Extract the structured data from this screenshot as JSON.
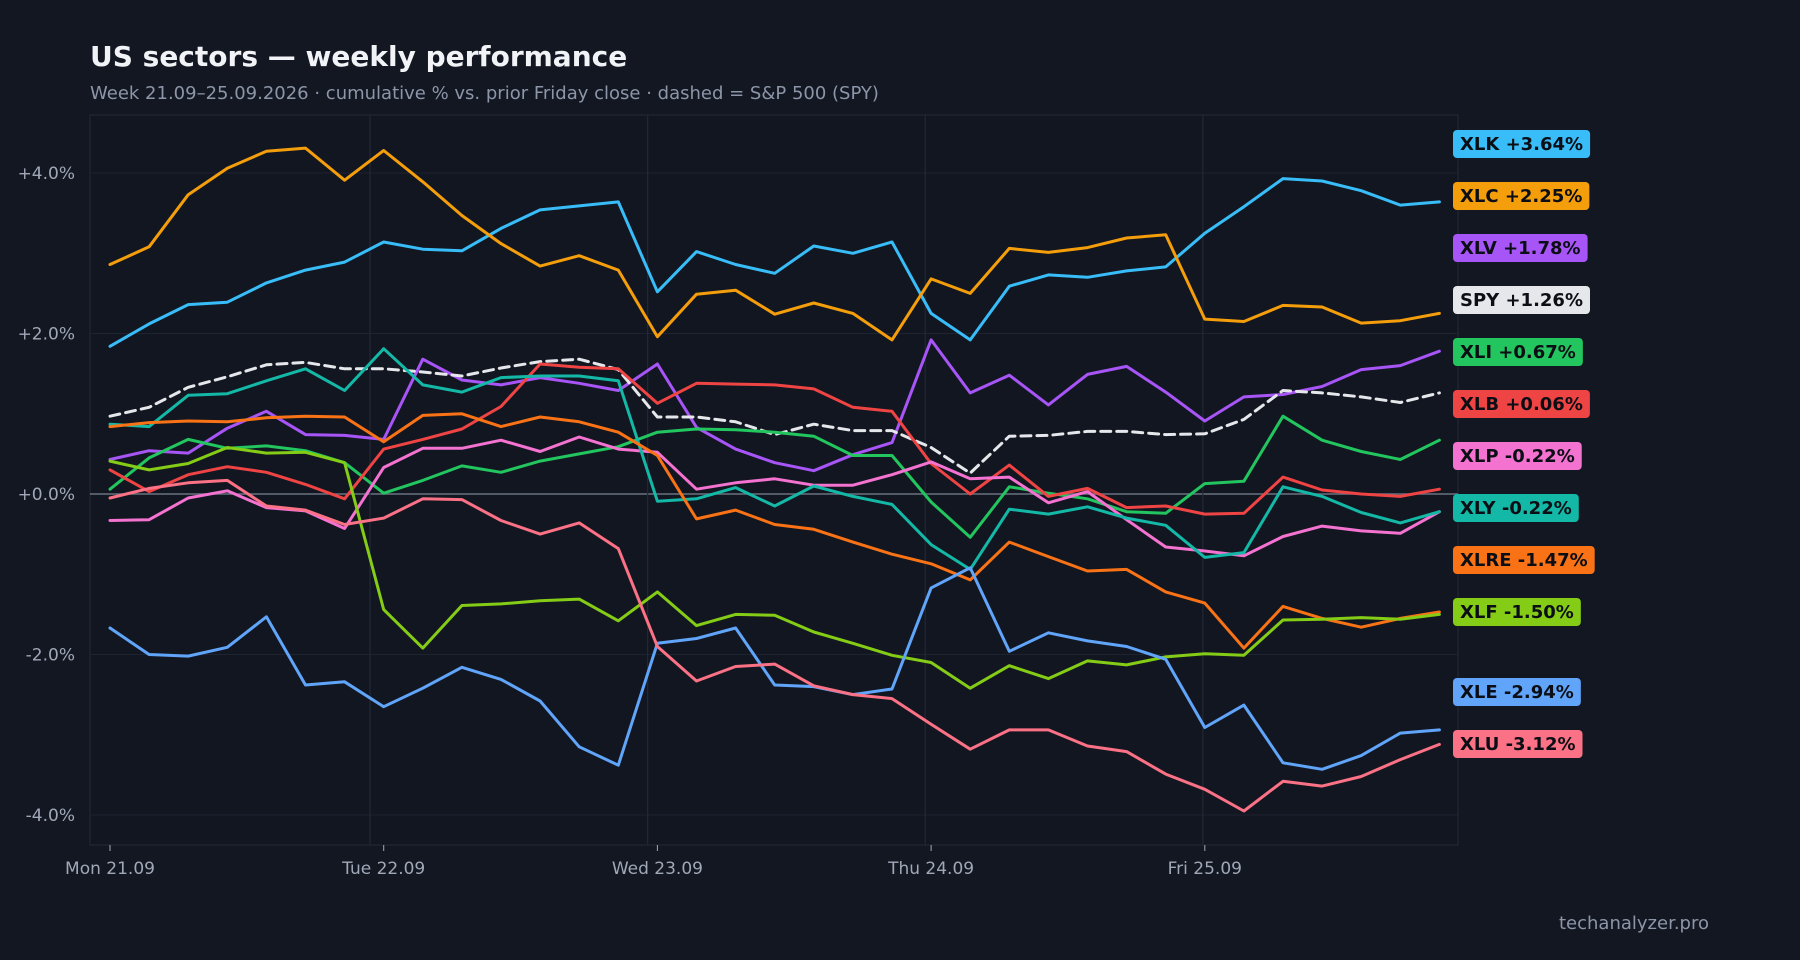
{
  "chart_data": {
    "type": "line",
    "title": "US sectors — weekly performance",
    "subtitle": "Week 21.09–25.09.2026 · cumulative % vs. prior Friday close · dashed = S&P 500 (SPY)",
    "watermark": "techanalyzer.pro",
    "xlabel": "",
    "ylabel": "",
    "ylim": [
      -4.4,
      4.7
    ],
    "yticks": [
      {
        "value": 4,
        "label": "+4.0%"
      },
      {
        "value": 2,
        "label": "+2.0%"
      },
      {
        "value": 0,
        "label": "+0.0%"
      },
      {
        "value": -2,
        "label": "-2.0%"
      },
      {
        "value": -4,
        "label": "-4.0%"
      }
    ],
    "xticks": [
      {
        "index": 0,
        "label": "Mon 21.09"
      },
      {
        "index": 7,
        "label": "Tue 22.09"
      },
      {
        "index": 14,
        "label": "Wed 23.09"
      },
      {
        "index": 21,
        "label": "Thu 24.09"
      },
      {
        "index": 28,
        "label": "Fri 25.09"
      }
    ],
    "grid": true,
    "legend": "right, end-of-line labels",
    "series": [
      {
        "name": "XLK",
        "end_label": "XLK +3.64%",
        "color": "#38bdf8",
        "dashed": false,
        "values": [
          1.84,
          2.12,
          2.36,
          2.39,
          2.63,
          2.79,
          2.89,
          3.14,
          3.05,
          3.03,
          3.31,
          3.54,
          3.59,
          3.64,
          2.52,
          3.02,
          2.86,
          2.75,
          3.09,
          3.0,
          3.14,
          2.25,
          1.92,
          2.59,
          2.73,
          2.7,
          2.78,
          2.83,
          3.25,
          3.58,
          3.93,
          3.9,
          3.78,
          3.6,
          3.64
        ]
      },
      {
        "name": "XLC",
        "end_label": "XLC +2.25%",
        "color": "#f59e0b",
        "dashed": false,
        "values": [
          2.86,
          3.08,
          3.73,
          4.06,
          4.27,
          4.31,
          3.91,
          4.28,
          3.89,
          3.47,
          3.12,
          2.84,
          2.97,
          2.79,
          1.96,
          2.49,
          2.54,
          2.24,
          2.38,
          2.25,
          1.92,
          2.68,
          2.5,
          3.06,
          3.01,
          3.07,
          3.19,
          3.23,
          2.18,
          2.15,
          2.35,
          2.33,
          2.13,
          2.16,
          2.25
        ]
      },
      {
        "name": "XLV",
        "end_label": "XLV +1.78%",
        "color": "#a855f7",
        "dashed": false,
        "values": [
          0.43,
          0.54,
          0.51,
          0.82,
          1.03,
          0.74,
          0.73,
          0.68,
          1.68,
          1.42,
          1.36,
          1.45,
          1.38,
          1.29,
          1.62,
          0.83,
          0.56,
          0.39,
          0.29,
          0.49,
          0.64,
          1.92,
          1.26,
          1.48,
          1.11,
          1.49,
          1.59,
          1.27,
          0.91,
          1.21,
          1.24,
          1.34,
          1.55,
          1.6,
          1.78
        ]
      },
      {
        "name": "SPY",
        "end_label": "SPY +1.26%",
        "color": "#e5e7eb",
        "dashed": true,
        "values": [
          0.97,
          1.08,
          1.33,
          1.46,
          1.61,
          1.64,
          1.56,
          1.56,
          1.52,
          1.47,
          1.57,
          1.65,
          1.68,
          1.55,
          0.96,
          0.96,
          0.9,
          0.74,
          0.87,
          0.79,
          0.79,
          0.58,
          0.26,
          0.72,
          0.73,
          0.78,
          0.78,
          0.74,
          0.75,
          0.93,
          1.29,
          1.26,
          1.21,
          1.14,
          1.26
        ]
      },
      {
        "name": "XLI",
        "end_label": "XLI +0.67%",
        "color": "#22c55e",
        "dashed": false,
        "values": [
          0.06,
          0.45,
          0.68,
          0.57,
          0.6,
          0.54,
          0.39,
          0.01,
          0.17,
          0.35,
          0.27,
          0.41,
          0.5,
          0.59,
          0.77,
          0.81,
          0.8,
          0.77,
          0.72,
          0.48,
          0.48,
          -0.1,
          -0.54,
          0.09,
          0.01,
          -0.06,
          -0.22,
          -0.24,
          0.13,
          0.16,
          0.97,
          0.67,
          0.53,
          0.43,
          0.67
        ]
      },
      {
        "name": "XLB",
        "end_label": "XLB +0.06%",
        "color": "#ef4444",
        "dashed": false,
        "values": [
          0.3,
          0.03,
          0.24,
          0.34,
          0.27,
          0.12,
          -0.06,
          0.56,
          0.68,
          0.81,
          1.09,
          1.62,
          1.58,
          1.56,
          1.13,
          1.38,
          1.37,
          1.36,
          1.31,
          1.08,
          1.03,
          0.38,
          0.0,
          0.36,
          -0.03,
          0.07,
          -0.17,
          -0.15,
          -0.25,
          -0.24,
          0.21,
          0.05,
          0.0,
          -0.03,
          0.06
        ]
      },
      {
        "name": "XLP",
        "end_label": "XLP -0.22%",
        "color": "#f472d0",
        "dashed": false,
        "values": [
          -0.33,
          -0.32,
          -0.05,
          0.04,
          -0.17,
          -0.21,
          -0.43,
          0.33,
          0.57,
          0.57,
          0.67,
          0.53,
          0.71,
          0.56,
          0.52,
          0.06,
          0.14,
          0.19,
          0.11,
          0.11,
          0.24,
          0.4,
          0.19,
          0.21,
          -0.11,
          0.03,
          -0.32,
          -0.66,
          -0.71,
          -0.77,
          -0.53,
          -0.4,
          -0.46,
          -0.49,
          -0.22
        ]
      },
      {
        "name": "XLY",
        "end_label": "XLY -0.22%",
        "color": "#14b8a6",
        "dashed": false,
        "values": [
          0.87,
          0.84,
          1.23,
          1.25,
          1.41,
          1.56,
          1.29,
          1.81,
          1.36,
          1.27,
          1.45,
          1.47,
          1.47,
          1.41,
          -0.09,
          -0.06,
          0.08,
          -0.15,
          0.1,
          -0.03,
          -0.13,
          -0.63,
          -0.94,
          -0.19,
          -0.25,
          -0.16,
          -0.3,
          -0.39,
          -0.79,
          -0.73,
          0.09,
          -0.03,
          -0.23,
          -0.36,
          -0.22
        ]
      },
      {
        "name": "XLRE",
        "end_label": "XLRE -1.47%",
        "color": "#f97316",
        "dashed": false,
        "values": [
          0.84,
          0.89,
          0.91,
          0.9,
          0.95,
          0.97,
          0.96,
          0.65,
          0.98,
          1.0,
          0.84,
          0.96,
          0.9,
          0.77,
          0.48,
          -0.31,
          -0.2,
          -0.38,
          -0.44,
          -0.6,
          -0.75,
          -0.87,
          -1.07,
          -0.6,
          -0.78,
          -0.96,
          -0.94,
          -1.22,
          -1.36,
          -1.92,
          -1.4,
          -1.55,
          -1.66,
          -1.55,
          -1.47
        ]
      },
      {
        "name": "XLF",
        "end_label": "XLF -1.50%",
        "color": "#84cc16",
        "dashed": false,
        "values": [
          0.41,
          0.3,
          0.38,
          0.58,
          0.51,
          0.52,
          0.39,
          -1.44,
          -1.92,
          -1.39,
          -1.37,
          -1.33,
          -1.31,
          -1.58,
          -1.22,
          -1.64,
          -1.5,
          -1.51,
          -1.72,
          -1.86,
          -2.01,
          -2.1,
          -2.42,
          -2.14,
          -2.3,
          -2.08,
          -2.13,
          -2.03,
          -1.99,
          -2.01,
          -1.57,
          -1.56,
          -1.54,
          -1.56,
          -1.5
        ]
      },
      {
        "name": "XLE",
        "end_label": "XLE -2.94%",
        "color": "#60a5fa",
        "dashed": false,
        "values": [
          -1.67,
          -2.0,
          -2.02,
          -1.91,
          -1.53,
          -2.38,
          -2.34,
          -2.65,
          -2.42,
          -2.16,
          -2.31,
          -2.58,
          -3.15,
          -3.38,
          -1.86,
          -1.8,
          -1.67,
          -2.38,
          -2.4,
          -2.5,
          -2.43,
          -1.17,
          -0.92,
          -1.96,
          -1.73,
          -1.83,
          -1.9,
          -2.06,
          -2.91,
          -2.63,
          -3.35,
          -3.43,
          -3.26,
          -2.98,
          -2.94
        ]
      },
      {
        "name": "XLU",
        "end_label": "XLU -3.12%",
        "color": "#fb7185",
        "dashed": false,
        "values": [
          -0.05,
          0.07,
          0.14,
          0.17,
          -0.15,
          -0.2,
          -0.38,
          -0.3,
          -0.06,
          -0.07,
          -0.33,
          -0.5,
          -0.36,
          -0.68,
          -1.9,
          -2.33,
          -2.15,
          -2.12,
          -2.39,
          -2.5,
          -2.55,
          -2.87,
          -3.18,
          -2.94,
          -2.94,
          -3.14,
          -3.21,
          -3.49,
          -3.68,
          -3.95,
          -3.58,
          -3.64,
          -3.52,
          -3.31,
          -3.12
        ]
      }
    ]
  },
  "colors": {
    "background": "#131722",
    "plot_background": "#121621",
    "grid": "#1e2330",
    "zero_line": "#6b7280",
    "axis_text": "#a0a8b8",
    "label_text": "#0b0e14"
  }
}
